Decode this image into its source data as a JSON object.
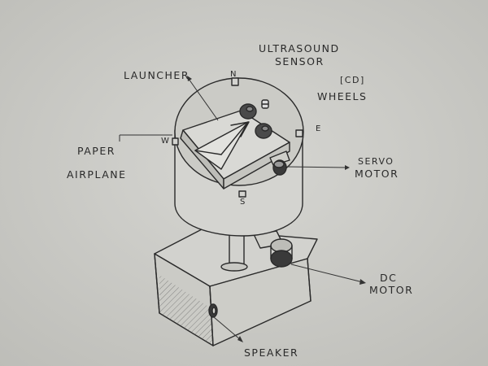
{
  "labels": {
    "ultrasound_line1": "ULTRASOUND",
    "ultrasound_line2": "SENSOR",
    "launcher": "LAUNCHER",
    "cd": "[CD]",
    "wheels": "WHEELS",
    "paper_line1": "PAPER",
    "paper_line2": "AIRPLANE",
    "servo_line1": "SERVO",
    "servo_line2": "MOTOR",
    "dc_line1": "DC",
    "dc_line2": "MOTOR",
    "speaker": "SPEAKER"
  },
  "compass": {
    "north": "N",
    "east": "E",
    "south": "S",
    "west": "W"
  },
  "colors": {
    "paper": "#cfcfcb",
    "ink": "#2a2a2a"
  }
}
